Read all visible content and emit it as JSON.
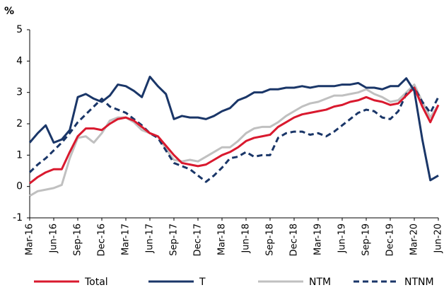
{
  "chart_data": {
    "type": "line",
    "y_label": "%",
    "categories": [
      "Mar-16",
      null,
      null,
      "Jun-16",
      null,
      null,
      "Sep-16",
      null,
      null,
      "Dec-16",
      null,
      null,
      "Mar-17",
      null,
      null,
      "Jun-17",
      null,
      null,
      "Sep-17",
      null,
      null,
      "Dec-17",
      null,
      null,
      "Mar-18",
      null,
      null,
      "Jun-18",
      null,
      null,
      "Sep-18",
      null,
      null,
      "Dec-18",
      null,
      null,
      "Mar-19",
      null,
      null,
      "Jun-19",
      null,
      null,
      "Sep-19",
      null,
      null,
      "Dec-19",
      null,
      null,
      "Mar-20",
      null,
      null,
      "Jun-20"
    ],
    "series": [
      {
        "name": "Total",
        "color": "#d9192e",
        "dashed": false,
        "values": [
          0.1,
          0.3,
          0.45,
          0.55,
          0.55,
          1.1,
          1.6,
          1.85,
          1.85,
          1.8,
          2.0,
          2.15,
          2.2,
          2.1,
          1.9,
          1.7,
          1.6,
          1.3,
          1.0,
          0.75,
          0.7,
          0.65,
          0.7,
          0.85,
          1.0,
          1.1,
          1.25,
          1.45,
          1.55,
          1.6,
          1.65,
          1.9,
          2.05,
          2.2,
          2.3,
          2.35,
          2.4,
          2.45,
          2.55,
          2.6,
          2.7,
          2.75,
          2.85,
          2.75,
          2.7,
          2.6,
          2.65,
          2.9,
          3.15,
          2.55,
          2.05,
          2.6
        ]
      },
      {
        "name": "T",
        "color": "#1a3668",
        "dashed": false,
        "values": [
          1.4,
          1.7,
          1.95,
          1.4,
          1.5,
          1.8,
          2.85,
          2.95,
          2.8,
          2.7,
          2.9,
          3.25,
          3.2,
          3.05,
          2.85,
          3.5,
          3.2,
          2.95,
          2.15,
          2.25,
          2.2,
          2.2,
          2.15,
          2.25,
          2.4,
          2.5,
          2.75,
          2.85,
          3.0,
          3.0,
          3.1,
          3.1,
          3.15,
          3.15,
          3.2,
          3.15,
          3.2,
          3.2,
          3.2,
          3.25,
          3.25,
          3.3,
          3.15,
          3.15,
          3.1,
          3.2,
          3.2,
          3.45,
          3.05,
          1.5,
          0.2,
          0.35
        ]
      },
      {
        "name": "NTM",
        "color": "#c0c0c0",
        "dashed": false,
        "values": [
          -0.3,
          -0.15,
          -0.1,
          -0.05,
          0.05,
          0.9,
          1.55,
          1.6,
          1.4,
          1.7,
          2.1,
          2.2,
          2.2,
          2.05,
          1.8,
          1.7,
          1.6,
          1.2,
          0.85,
          0.8,
          0.85,
          0.8,
          0.95,
          1.1,
          1.25,
          1.25,
          1.45,
          1.7,
          1.85,
          1.9,
          1.9,
          2.05,
          2.25,
          2.4,
          2.55,
          2.65,
          2.7,
          2.8,
          2.9,
          2.9,
          2.95,
          3.0,
          3.1,
          2.95,
          2.85,
          2.7,
          2.75,
          3.0,
          3.25,
          2.7,
          2.2,
          2.6
        ]
      },
      {
        "name": "NTNM",
        "color": "#1a3668",
        "dashed": true,
        "values": [
          0.45,
          0.7,
          0.9,
          1.15,
          1.4,
          1.7,
          2.05,
          2.3,
          2.55,
          2.8,
          2.55,
          2.45,
          2.35,
          2.15,
          1.95,
          1.7,
          1.55,
          1.15,
          0.75,
          0.65,
          0.55,
          0.35,
          0.15,
          0.35,
          0.6,
          0.9,
          0.95,
          1.1,
          0.95,
          1.0,
          1.0,
          1.55,
          1.7,
          1.75,
          1.75,
          1.65,
          1.7,
          1.6,
          1.75,
          1.95,
          2.15,
          2.35,
          2.45,
          2.4,
          2.2,
          2.15,
          2.4,
          2.95,
          3.15,
          2.7,
          2.35,
          2.85
        ]
      }
    ],
    "ylim": [
      -1,
      5
    ],
    "yticks": [
      -1,
      0,
      1,
      2,
      3,
      4,
      5
    ],
    "grid": false
  }
}
